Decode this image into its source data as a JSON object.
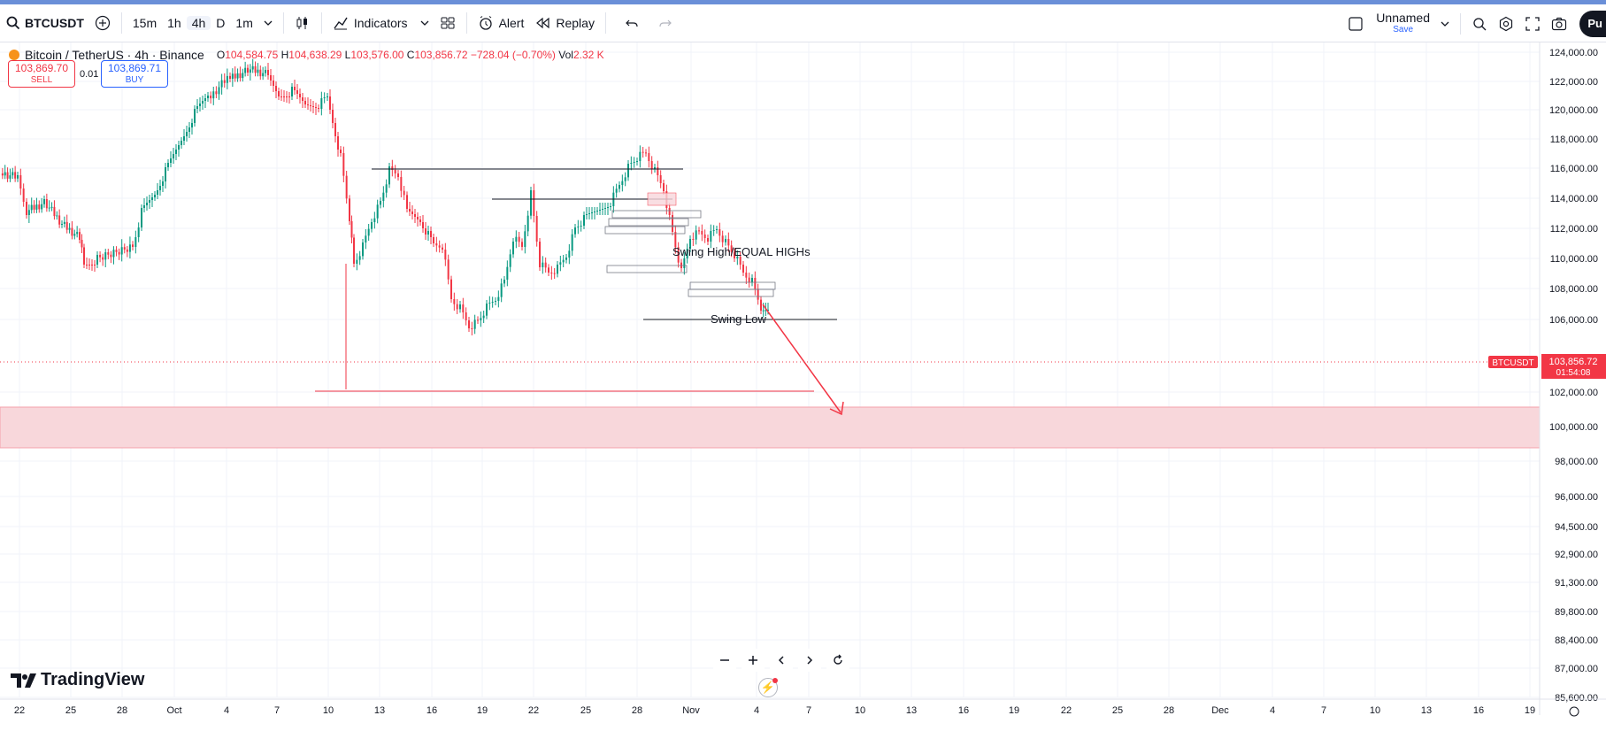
{
  "toolbar": {
    "symbol": "BTCUSDT",
    "timeframes": [
      "15m",
      "1h",
      "4h",
      "D",
      "1m"
    ],
    "active_timeframe": "4h",
    "indicators_label": "Indicators",
    "alert_label": "Alert",
    "replay_label": "Replay",
    "layout_name": "Unnamed",
    "save_label": "Save",
    "publish_label": "Pu"
  },
  "legend": {
    "title": "Bitcoin / TetherUS · 4h · Binance",
    "o_label": "O",
    "o_value": "104,584.75",
    "h_label": "H",
    "h_value": "104,638.29",
    "l_label": "L",
    "l_value": "103,576.00",
    "c_label": "C",
    "c_value": "103,856.72",
    "change": "−728.04 (−0.70%)",
    "vol_label": "Vol",
    "vol_value": "2.32 K"
  },
  "trade": {
    "sell_price": "103,869.70",
    "sell_label": "SELL",
    "qty": "0.01",
    "buy_price": "103,869.71",
    "buy_label": "BUY"
  },
  "price_axis": {
    "labels": [
      "124,000.00",
      "122,000.00",
      "120,000.00",
      "118,000.00",
      "116,000.00",
      "114,000.00",
      "112,000.00",
      "110,000.00",
      "108,000.00",
      "106,000.00",
      "102,000.00",
      "100,000.00",
      "98,000.00",
      "96,000.00",
      "94,500.00",
      "92,900.00",
      "91,300.00",
      "89,800.00",
      "88,400.00",
      "87,000.00",
      "85,600.00"
    ],
    "current_symbol": "BTCUSDT",
    "current_price": "103,856.72",
    "countdown": "01:54:08"
  },
  "time_axis": {
    "labels": [
      "22",
      "25",
      "28",
      "Oct",
      "4",
      "7",
      "10",
      "13",
      "16",
      "19",
      "22",
      "25",
      "28",
      "Nov",
      "4",
      "7",
      "10",
      "13",
      "16",
      "19",
      "22",
      "25",
      "28",
      "Dec",
      "4",
      "7",
      "10",
      "13",
      "16",
      "19"
    ]
  },
  "annotations": {
    "swing_high": "Swing High/EQUAL HIGHs",
    "swing_low": "Swing Low"
  },
  "brand": {
    "name": "TradingView"
  },
  "colors": {
    "up": "#089981",
    "down": "#f23645",
    "zone": "#f8d7db",
    "accent": "#2962ff"
  }
}
